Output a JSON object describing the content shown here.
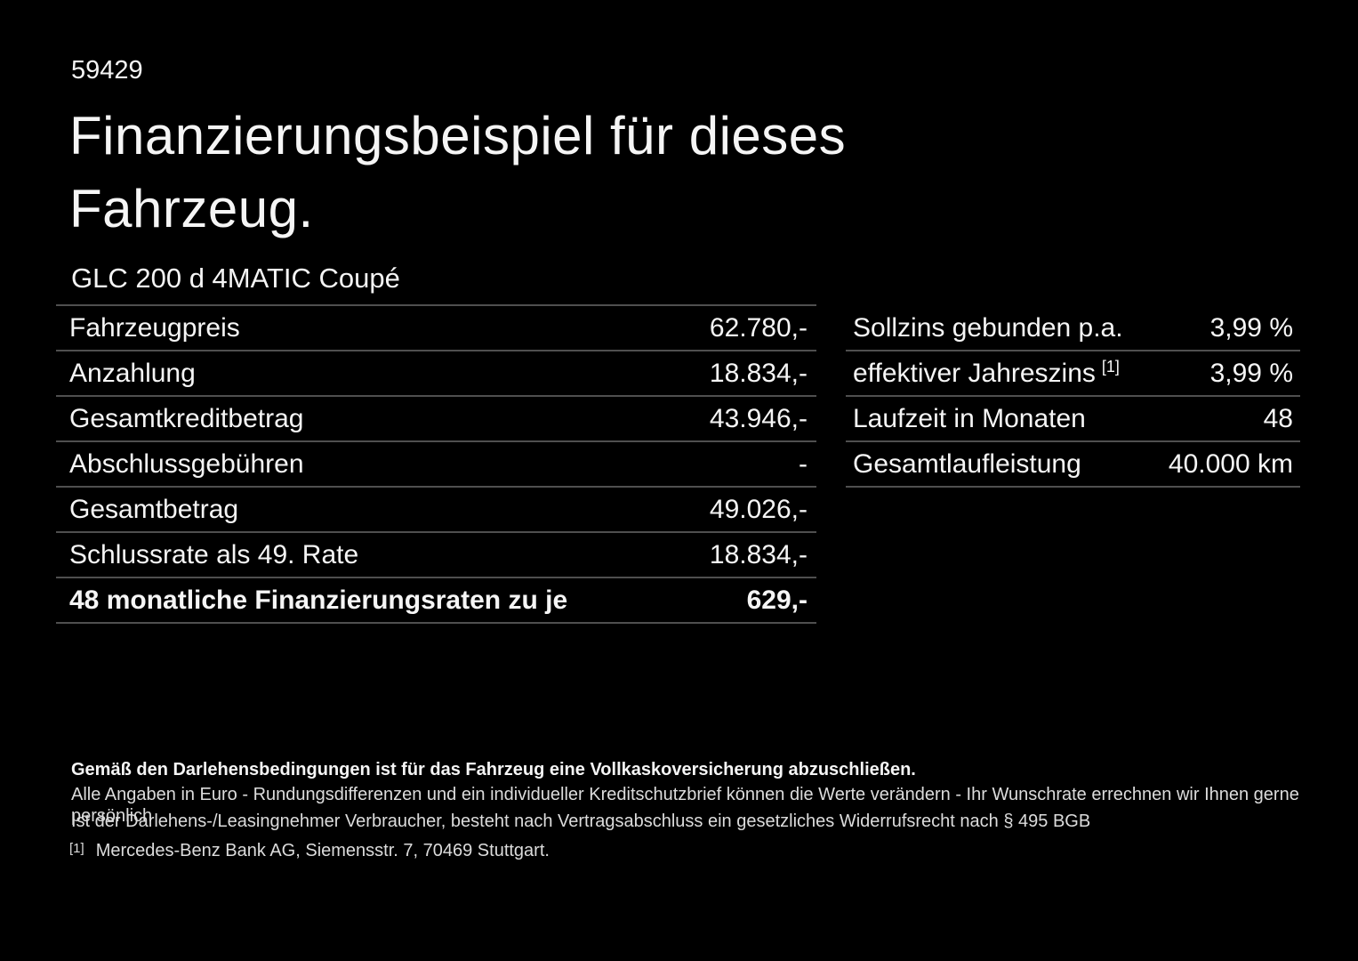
{
  "page": {
    "background": "#000000",
    "text_color": "#f5f5f5",
    "muted_text_color": "#dcdcdc",
    "rule_color": "#4f4f4f"
  },
  "header": {
    "doc_number": "59429",
    "title_line1": "Finanzierungsbeispiel für dieses",
    "title_line2": "Fahrzeug.",
    "vehicle_model": "GLC 200 d 4MATIC Coupé"
  },
  "finance_table": {
    "rows": [
      {
        "label": "Fahrzeugpreis",
        "value": "62.780,-"
      },
      {
        "label": "Anzahlung",
        "value": "18.834,-"
      },
      {
        "label": "Gesamtkreditbetrag",
        "value": "43.946,-"
      },
      {
        "label": "Abschlussgebühren",
        "value": "-"
      },
      {
        "label": "Gesamtbetrag",
        "value": "49.026,-"
      },
      {
        "label": "Schlussrate als 49. Rate",
        "value": "18.834,-"
      },
      {
        "label": "48 monatliche Finanzierungsraten zu je",
        "value": "629,-"
      }
    ]
  },
  "conditions_table": {
    "rows": [
      {
        "label": "Sollzins gebunden p.a.",
        "sup": "",
        "value": "3,99 %"
      },
      {
        "label": "effektiver Jahreszins",
        "sup": "[1]",
        "value": "3,99 %"
      },
      {
        "label": "Laufzeit in Monaten",
        "sup": "",
        "value": "48"
      },
      {
        "label": "Gesamtlaufleistung",
        "sup": "",
        "value": "40.000 km"
      }
    ]
  },
  "footer": {
    "insurance_note": "Gemäß den Darlehensbedingungen ist für das Fahrzeug eine Vollkaskoversicherung abzuschließen.",
    "disclaimer_line1": "Alle Angaben in Euro - Rundungsdifferenzen und ein individueller Kreditschutzbrief können die Werte verändern - Ihr Wunschrate errechnen wir Ihnen gerne persönlich",
    "disclaimer_line2": "Ist der Darlehens-/Leasingnehmer Verbraucher, besteht nach Vertragsabschluss ein gesetzliches Widerrufsrecht nach § 495 BGB",
    "footnote_marker": "[1]",
    "footnote_text": "Mercedes-Benz Bank AG, Siemensstr. 7, 70469 Stuttgart."
  }
}
